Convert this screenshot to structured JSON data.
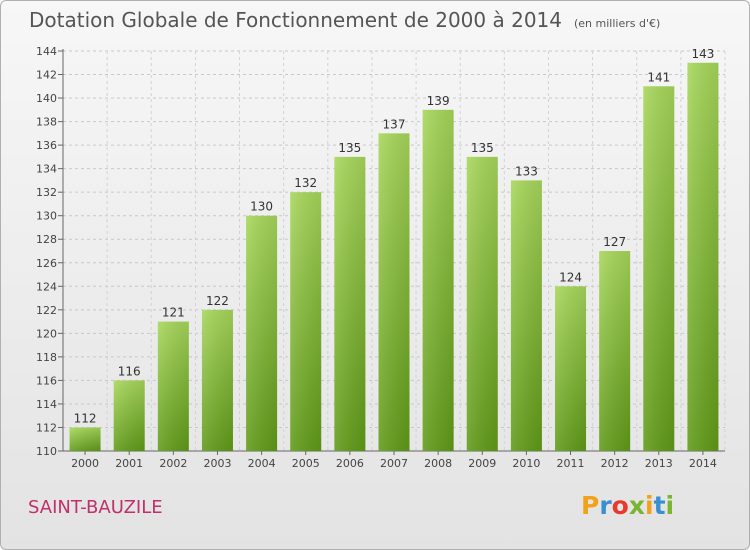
{
  "chart_data": {
    "type": "bar",
    "title": "Dotation Globale de Fonctionnement de 2000 à 2014",
    "subtitle": "(en milliers d'€)",
    "xlabel": "",
    "ylabel": "",
    "categories": [
      "2000",
      "2001",
      "2002",
      "2003",
      "2004",
      "2005",
      "2006",
      "2007",
      "2008",
      "2009",
      "2010",
      "2011",
      "2012",
      "2013",
      "2014"
    ],
    "values": [
      112,
      116,
      121,
      122,
      130,
      132,
      135,
      137,
      139,
      135,
      133,
      124,
      127,
      141,
      143
    ],
    "ylim": [
      110,
      144
    ],
    "yticks": [
      110,
      112,
      114,
      116,
      118,
      120,
      122,
      124,
      126,
      128,
      130,
      132,
      134,
      136,
      138,
      140,
      142,
      144
    ],
    "grid": true,
    "bar_color": "#7ab531"
  },
  "commune": "SAINT-BAUZILE",
  "logo": {
    "letters": [
      "P",
      "r",
      "o",
      "x",
      "i",
      "t",
      "i"
    ],
    "colors": [
      "#f0a21a",
      "#3a8fd0",
      "#e8392e",
      "#7ab531",
      "#f0a21a",
      "#3a8fd0",
      "#7ab531"
    ]
  }
}
